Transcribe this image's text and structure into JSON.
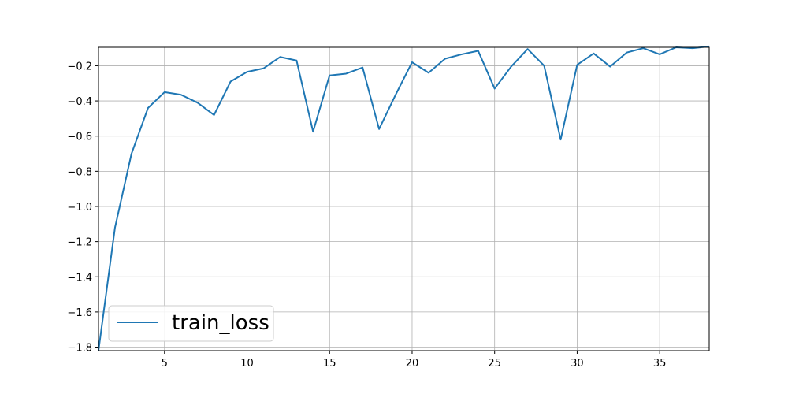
{
  "chart_data": {
    "type": "line",
    "title": "",
    "xlabel": "",
    "ylabel": "",
    "xlim": [
      1,
      38
    ],
    "ylim": [
      -1.82,
      -0.095
    ],
    "xticks": [
      5,
      10,
      15,
      20,
      25,
      30,
      35
    ],
    "yticks": [
      -1.8,
      -1.6,
      -1.4,
      -1.2,
      -1.0,
      -0.8,
      -0.6,
      -0.4,
      -0.2
    ],
    "ytick_labels": [
      "−1.8",
      "−1.6",
      "−1.4",
      "−1.2",
      "−1.0",
      "−0.8",
      "−0.6",
      "−0.4",
      "−0.2"
    ],
    "grid": true,
    "legend": {
      "position": "lower-left"
    },
    "series": [
      {
        "name": "train_loss",
        "color": "#1f77b4",
        "x": [
          1,
          2,
          3,
          4,
          5,
          6,
          7,
          8,
          9,
          10,
          11,
          12,
          13,
          14,
          15,
          16,
          17,
          18,
          19,
          20,
          21,
          22,
          23,
          24,
          25,
          26,
          27,
          28,
          29,
          30,
          31,
          32,
          33,
          34,
          35,
          36,
          37,
          38
        ],
        "y": [
          -1.82,
          -1.12,
          -0.7,
          -0.44,
          -0.35,
          -0.365,
          -0.41,
          -0.48,
          -0.29,
          -0.235,
          -0.215,
          -0.15,
          -0.17,
          -0.575,
          -0.255,
          -0.245,
          -0.21,
          -0.56,
          -0.365,
          -0.18,
          -0.24,
          -0.16,
          -0.135,
          -0.115,
          -0.33,
          -0.205,
          -0.105,
          -0.2,
          -0.62,
          -0.195,
          -0.13,
          -0.205,
          -0.125,
          -0.1,
          -0.135,
          -0.095,
          -0.1,
          -0.09
        ]
      }
    ]
  }
}
